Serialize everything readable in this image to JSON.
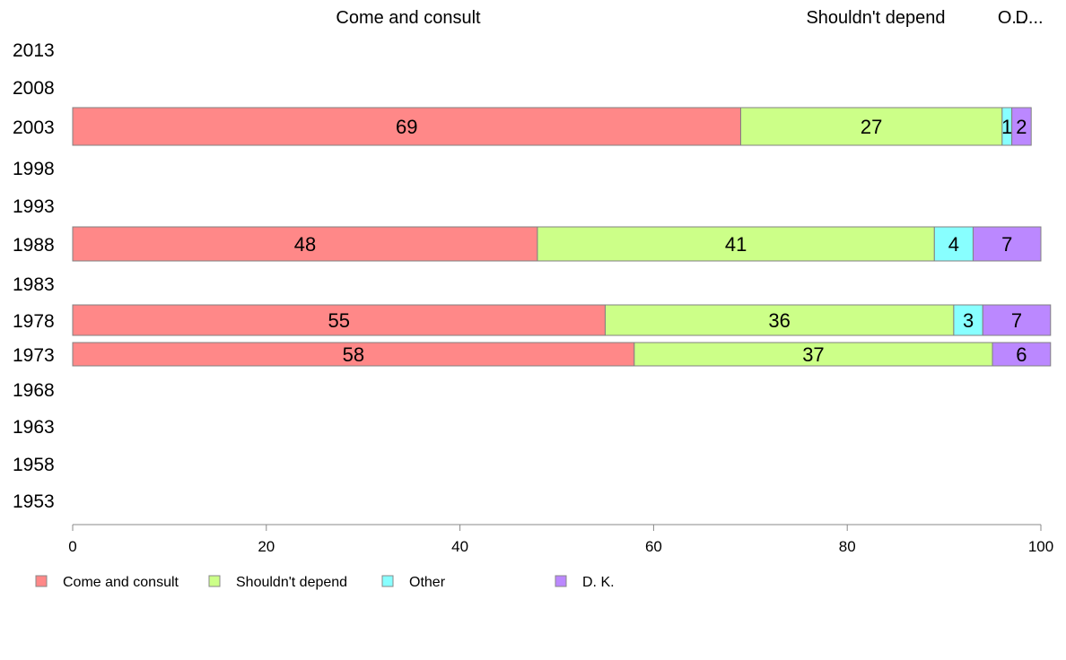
{
  "chart_data": {
    "type": "bar",
    "orientation": "horizontal",
    "stacked": true,
    "categories": [
      "2013",
      "2008",
      "2003",
      "1998",
      "1993",
      "1988",
      "1983",
      "1978",
      "1973",
      "1968",
      "1963",
      "1958",
      "1953"
    ],
    "series": [
      {
        "name": "Come and consult",
        "color": "#FF8888",
        "values": [
          null,
          null,
          69,
          null,
          null,
          48,
          null,
          55,
          58,
          null,
          null,
          null,
          null
        ]
      },
      {
        "name": "Shouldn't depend",
        "color": "#CCFF88",
        "values": [
          null,
          null,
          27,
          null,
          null,
          41,
          null,
          36,
          37,
          null,
          null,
          null,
          null
        ]
      },
      {
        "name": "Other",
        "color": "#88FFFF",
        "values": [
          null,
          null,
          1,
          null,
          null,
          4,
          null,
          3,
          0,
          null,
          null,
          null,
          null
        ]
      },
      {
        "name": "D. K.",
        "color": "#BB88FF",
        "values": [
          null,
          null,
          2,
          null,
          null,
          7,
          null,
          7,
          6,
          null,
          null,
          null,
          null
        ]
      }
    ],
    "top_labels": [
      "Come and consult",
      "Shouldn't depend",
      "O...",
      "D..."
    ],
    "xlim": [
      0,
      100
    ],
    "xticks": [
      0,
      20,
      40,
      60,
      80,
      100
    ],
    "legend_position": "bottom",
    "grid": false
  }
}
